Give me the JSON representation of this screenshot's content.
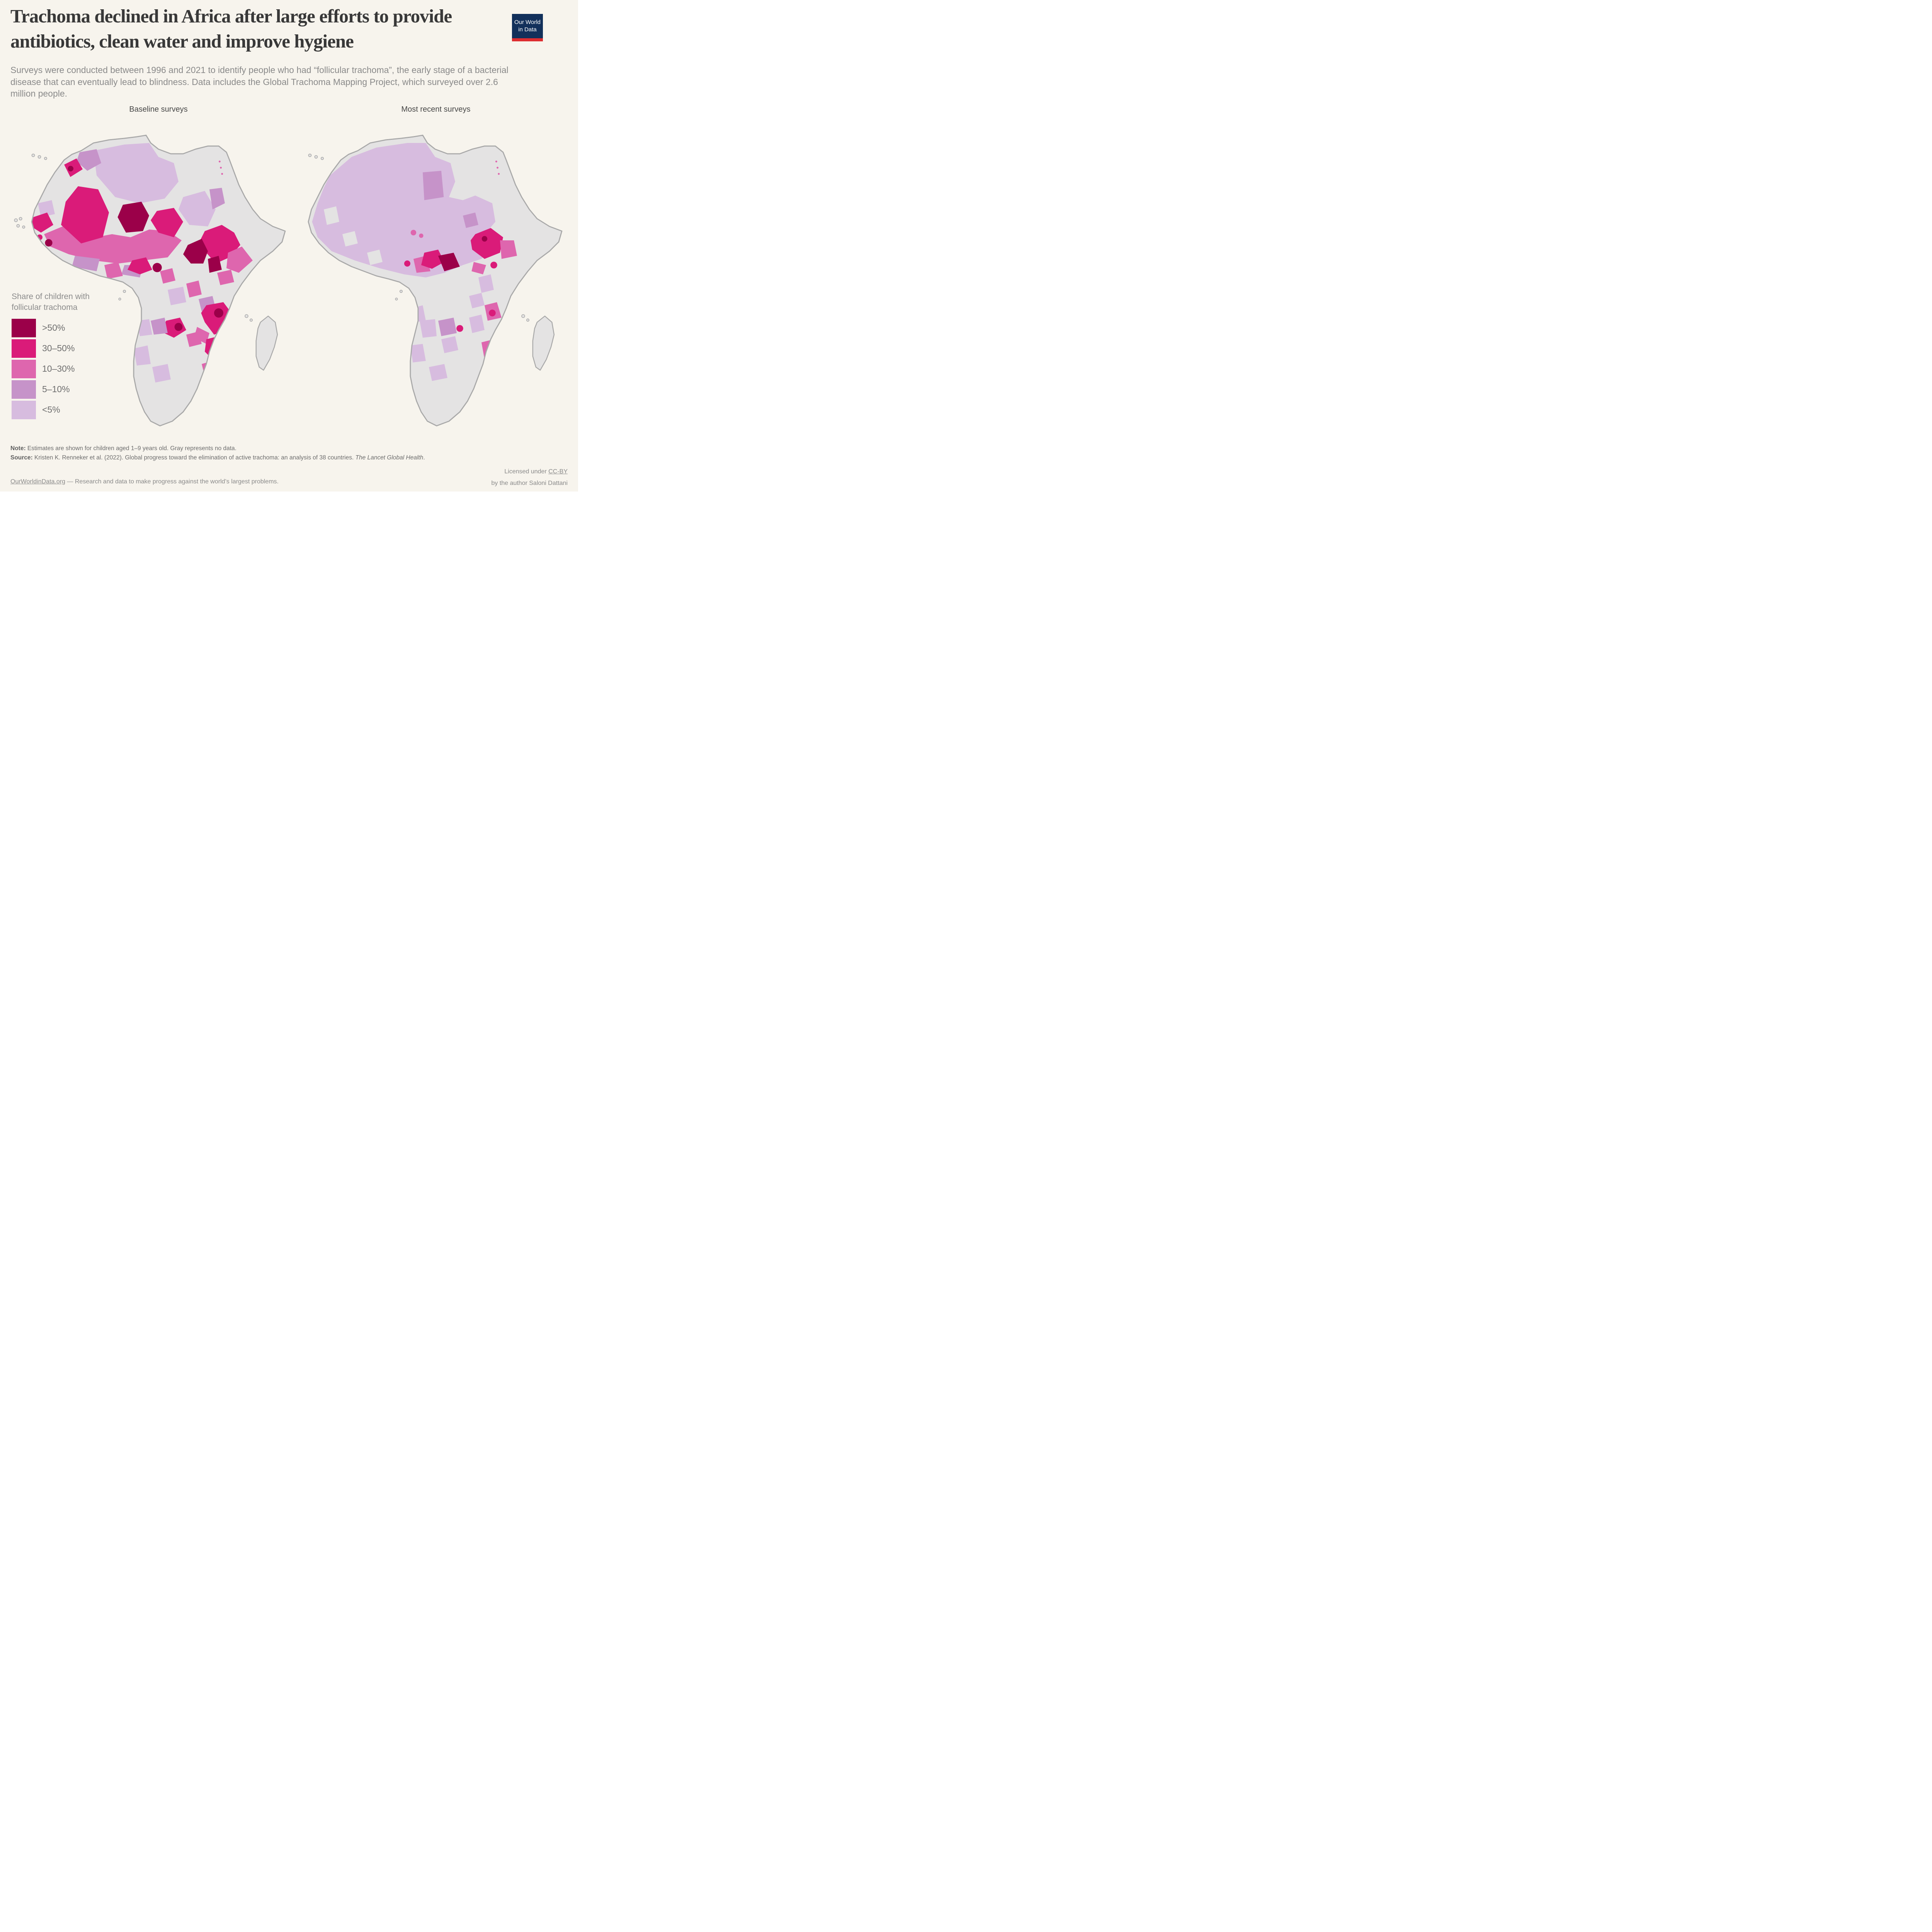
{
  "header": {
    "title": "Trachoma declined in Africa after large efforts to provide antibiotics, clean water and improve hygiene",
    "subtitle": "Surveys were conducted between 1996 and 2021 to identify people who had “follicular trachoma”, the early stage of a bacterial disease that can eventually lead to blindness. Data includes the Global Trachoma Mapping Project, which surveyed over 2.6 million people."
  },
  "logo": {
    "line1": "Our World",
    "line2": "in Data",
    "bg_color": "#12305b",
    "bar_color": "#dd2d30"
  },
  "panels": [
    {
      "label": "Baseline surveys"
    },
    {
      "label": "Most recent surveys"
    }
  ],
  "legend": {
    "title": "Share of children with follicular trachoma"
  },
  "notes": {
    "note_label": "Note:",
    "note_text": " Estimates are shown for children aged 1–9 years old. Gray represents no data.",
    "source_label": "Source:",
    "source_text": " Kristen K. Renneker et al. (2022). Global progress toward the elimination of active trachoma: an analysis of 38 countries. ",
    "source_journal": "The Lancet Global Health",
    "source_end": "."
  },
  "footer": {
    "link": "OurWorldinData.org",
    "tagline": " — Research and data to make progress against the world’s largest problems.",
    "license_pre": "Licensed under ",
    "license_link": "CC-BY",
    "byline": "by the author Saloni Dattani"
  },
  "chart_data": {
    "type": "choropleth",
    "title": "Share of children with follicular trachoma",
    "panels": [
      "Baseline surveys",
      "Most recent surveys"
    ],
    "survey_period": "1996 and 2021",
    "people_surveyed": "over 2.6 million",
    "bins": [
      {
        "key": "gt50",
        "label": ">50%",
        "color": "#9b0049"
      },
      {
        "key": "b30_50",
        "label": "30–50%",
        "color": "#da1b79"
      },
      {
        "key": "b10_30",
        "label": "10–30%",
        "color": "#de66ae"
      },
      {
        "key": "b5_10",
        "label": "5–10%",
        "color": "#c693c9"
      },
      {
        "key": "lt5",
        "label": "<5%",
        "color": "#d7bcdf"
      }
    ],
    "no_data_color": "#e4e3e3",
    "border_color": "#a9a9a9",
    "background_color": "#f7f4ed",
    "geo": {
      "mainland": "22,7 26,4.5 31,3.5 36,3 40,2.5 43,2 44.5,4.5 47,6.5 51,8 55,8 59,6.5 63,5.5 66.5,5.5 69,7.5 70,10 71.5,14 73,18 75,22 77.5,26 80,29 84,31.5 88,33 87,36.5 84,39.5 80,42.5 77,46 74,50 71.5,54 70,58 68.5,61.5 66.5,65 65,68 63.5,72 62.5,76 61,80 59.5,84 57.5,88 55,91.5 51.5,94.5 47.5,96 44.5,94.5 42.5,91.5 41,88 39.8,84 39,80 39,75 39.5,70 40.5,66 41.5,62 41.5,58 40.5,54.5 38.5,51.5 35.5,49.5 32,48.5 28,47.5 24,46 20,44.5 16,42.5 12.5,40 9.5,37 7,33.5 6,30 7,26 9,22 11,18 13.5,14 16.5,10 19,8.2",
      "madagascar": "80,62.5 82.5,60.5 84.8,62.5 85.5,66.5 84.5,70.5 83,74.5 81,78 79.6,77 78.6,73.5 78.6,68.5 79.2,64.5",
      "islands": [
        {
          "c": [
            6.5,
            8.5,
            0.45
          ]
        },
        {
          "c": [
            8.5,
            9,
            0.45
          ]
        },
        {
          "c": [
            10.5,
            9.5,
            0.4
          ]
        },
        {
          "c": [
            75.5,
            60.5,
            0.5
          ]
        },
        {
          "c": [
            77,
            61.8,
            0.4
          ]
        },
        {
          "c": [
            36,
            52.5,
            0.4
          ]
        },
        {
          "c": [
            34.5,
            55,
            0.35
          ]
        },
        {
          "c": [
            0.9,
            29.5,
            0.5
          ],
          "left_only": true
        },
        {
          "c": [
            2.4,
            29,
            0.45
          ],
          "left_only": true
        },
        {
          "c": [
            1.6,
            31.3,
            0.45
          ],
          "left_only": true
        },
        {
          "c": [
            3.4,
            31.7,
            0.4
          ],
          "left_only": true
        }
      ]
    },
    "maps": [
      {
        "name": "Baseline surveys",
        "summary": "High prevalence (10–50% and >50%) across the Sahel belt (Mali, Niger, Chad, Senegal, Guinea), Ethiopia and South Sudan, and southeastern Africa (Tanzania, Zambia, Mozambique); <5% and 5–10% across North Africa; gray (no data) in most of southern Africa, Egypt and the Congo basin.",
        "patches": [
          {
            "bin": "lt5",
            "poly": "26,7 36,5 44,4.5 47,9 52,11 53.5,17 49,22.5 41,24 33,22 27,15"
          },
          {
            "bin": "lt5",
            "poly": "55,22 62,20 65.5,26 63,31.5 57,31 53.5,26"
          },
          {
            "bin": "b5_10",
            "poly": "21.5,7.5 27,6.5 28.5,11 24,13.5 20.5,10.5"
          },
          {
            "bin": "b5_10",
            "poly": "63.5,19.5 67.5,19 68.5,24 64.5,26"
          },
          {
            "bin": "lt5",
            "poly": "8,24 12.5,23 13.5,27.5 9,28.5"
          },
          {
            "bin": "b10_30",
            "poly": "10,34 16,31.5 24,35.5 32,34 38,35 44,32.5 50,33 54.5,36 50,41.5 42,42.5 34,43.5 26,42.5 18,40.5 12,38"
          },
          {
            "bin": "b5_10",
            "poly": "20,41 28,42 27,46 19,44.5"
          },
          {
            "bin": "b5_10",
            "poly": "36,44 42,44 41,48 35,47"
          },
          {
            "bin": "b30_50",
            "poly": "21,18.5 27.5,19.5 31,27 29,35 22,37 15.5,31 17,23.5"
          },
          {
            "bin": "b30_50",
            "poly": "6.5,28.5 11,27 13,31 9,33.5 5.8,31.5"
          },
          {
            "bin": "b30_50",
            "poly": "46.5,26.5 52,25.5 55,30 52,35 47,33.5 44.5,29.5"
          },
          {
            "bin": "b30_50",
            "poly": "16.5,11.5 20.5,9.5 22.5,13 18.5,15.5"
          },
          {
            "bin": "gt50",
            "poly": "35.5,24.5 41.5,23.5 44,28 42,33 36.5,33.5 33.8,28.5"
          },
          {
            "bin": "gt50",
            "c": [
              18.6,
              12.8,
              0.9
            ]
          },
          {
            "bin": "gt50",
            "c": [
              11.5,
              36.8,
              1.2
            ]
          },
          {
            "bin": "b30_50",
            "c": [
              8.6,
              35,
              0.9
            ]
          },
          {
            "bin": "b30_50",
            "poly": "62,33 67.5,31 71.5,33.5 73.5,37.5 70,41.5 65.5,43.5 62.5,40 60.5,36"
          },
          {
            "bin": "gt50",
            "poly": "56.5,37.5 61,35.5 63,39.5 61.5,43.5 57.5,43.5 55,40.5"
          },
          {
            "bin": "gt50",
            "poly": "63,42 66.5,41 67.5,45.5 63.5,46.5"
          },
          {
            "bin": "b10_30",
            "poly": "69.5,40 74,38 77.5,42.5 73,46.5 69,45"
          },
          {
            "bin": "b10_30",
            "poly": "66,46.5 70.5,45.5 71.5,49.5 67,50.5"
          },
          {
            "bin": "b10_30",
            "poly": "29.5,44 34,43 35.5,47.5 30.5,48.5"
          },
          {
            "bin": "b30_50",
            "poly": "38.5,42.5 43,41.5 45,45.5 41,47 37,45.5"
          },
          {
            "bin": "gt50",
            "c": [
              46.6,
              44.8,
              1.5
            ]
          },
          {
            "bin": "b10_30",
            "poly": "47.5,46 51.5,45 52.5,49 48.5,50"
          },
          {
            "bin": "b10_30",
            "poly": "56,50 60,49 61,53.5 57,54.5"
          },
          {
            "bin": "lt5",
            "poly": "50,52 55,51 56,56 51,57"
          },
          {
            "bin": "b5_10",
            "poly": "60,55 64.5,54 65.5,58 61,59"
          },
          {
            "bin": "b30_50",
            "poly": "62.5,57 68,56 71,60 70,65 65,66.5 62,62.5 60.8,59.5"
          },
          {
            "bin": "gt50",
            "c": [
              66.5,
              59.5,
              1.5
            ]
          },
          {
            "bin": "b10_30",
            "poly": "59.5,64 63.5,66 62.5,69.5 58.5,67.5"
          },
          {
            "bin": "b30_50",
            "poly": "62.5,68 66.5,67 68,72 65,75 62,72"
          },
          {
            "bin": "b10_30",
            "poly": "61,76 64.5,75 65.5,79 62,80"
          },
          {
            "bin": "b30_50",
            "poly": "49.5,62 54,61 56,65 52,67.5 47.8,65.5"
          },
          {
            "bin": "gt50",
            "c": [
              53.5,
              64,
              1.3
            ]
          },
          {
            "bin": "b10_30",
            "poly": "56,66.5 60,65.5 61,69.5 57,70.5"
          },
          {
            "bin": "b5_10",
            "poly": "44.5,62 49,61 50,66 45.5,66.5"
          },
          {
            "bin": "lt5",
            "poly": "40,62 44,61.5 45,66.5 41,67"
          },
          {
            "bin": "lt5",
            "poly": "39,71 43.5,70 44.5,76 40,76.5"
          },
          {
            "bin": "lt5",
            "poly": "45,77 50,76 51,81 46,82"
          },
          {
            "bin": "b10_30",
            "c": [
              66.8,
              10.5,
              0.3
            ]
          },
          {
            "bin": "b10_30",
            "c": [
              67.2,
              12.5,
              0.3
            ]
          },
          {
            "bin": "b10_30",
            "c": [
              67.6,
              14.5,
              0.3
            ]
          }
        ]
      },
      {
        "name": "Most recent surveys",
        "summary": "Most surveyed districts fell to <5% (pale lavender across West Africa, the Sahara, Sahel and Sudan); remaining hotspots of 30–50% and >50% are limited to southern Chad / CAR and Ethiopia, with scattered 10–30% districts in Tanzania and Mozambique; gray (no data) in Morocco, Egypt, the Congo basin, the Horn and southern Africa.",
        "patches": [
          {
            "bin": "lt5",
            "poly": "13,15 20,9 28,6 38,4.5 44,4.5 47,9 52,11 53.5,17 51.5,22 56,23 60,21.5 65.5,24 66.5,30 63.5,33.5 65.5,38 62,42 56,44 50,46.5 44,48 37,47 29,45 21,42.5 13.5,39.5 9,35 7.2,30 9,24 11,19"
          },
          {
            "bin": "nodata",
            "poly": "11,26 15,25 16,30 12,31"
          },
          {
            "bin": "nodata",
            "poly": "17,34 21,33 22,37 18,38"
          },
          {
            "bin": "nodata",
            "poly": "25,40 29,39 30,43 26,44"
          },
          {
            "bin": "b5_10",
            "poly": "43,14 49,13.5 49.8,22 43.5,23"
          },
          {
            "bin": "b5_10",
            "poly": "56,28 60,27 61,31 57,32"
          },
          {
            "bin": "b10_30",
            "c": [
              40,
              33.5,
              0.9
            ]
          },
          {
            "bin": "b10_30",
            "c": [
              42.5,
              34.5,
              0.7
            ]
          },
          {
            "bin": "b10_30",
            "poly": "40,42 44,41 45.5,46 41,46.5"
          },
          {
            "bin": "b30_50",
            "poly": "43.5,40 48,39 50,43 46,45.2 42.5,44"
          },
          {
            "bin": "gt50",
            "poly": "48,41 53,40 55,44.5 50,46"
          },
          {
            "bin": "b30_50",
            "c": [
              38,
              43.5,
              1.0
            ]
          },
          {
            "bin": "b30_50",
            "poly": "60,34 65,32 69,35 68,40 63,42 59,39 58.5,36"
          },
          {
            "bin": "b10_30",
            "poly": "68,36 72.5,36 73.5,41 68.5,42"
          },
          {
            "bin": "gt50",
            "c": [
              63,
              35.5,
              0.9
            ]
          },
          {
            "bin": "b30_50",
            "c": [
              66,
              44,
              1.1
            ]
          },
          {
            "bin": "b10_30",
            "poly": "59.5,43 63.5,44 62.5,47 58.8,46"
          },
          {
            "bin": "lt5",
            "poly": "61,48 65,47 66,52 62,53"
          },
          {
            "bin": "lt5",
            "poly": "58,54 62,53 63,57 59,58"
          },
          {
            "bin": "b10_30",
            "poly": "63,57 67,56 68.5,61 64,62"
          },
          {
            "bin": "b30_50",
            "c": [
              65.5,
              59.5,
              1.1
            ]
          },
          {
            "bin": "lt5",
            "poly": "58,61 62,60 63,65 59,66"
          },
          {
            "bin": "b10_30",
            "poly": "62,69 66,68 67,73 63,74.5"
          },
          {
            "bin": "b30_50",
            "c": [
              64.5,
              76,
              0.9
            ]
          },
          {
            "bin": "b5_10",
            "poly": "48,62 53,61 54,66 49,67"
          },
          {
            "bin": "b30_50",
            "c": [
              55,
              64.5,
              1.1
            ]
          },
          {
            "bin": "lt5",
            "poly": "42,62 47,61.5 47.5,67 43,67.5"
          },
          {
            "bin": "lt5",
            "poly": "39.5,58 43,57 44,62 40,62.5"
          },
          {
            "bin": "lt5",
            "poly": "39,70 43,69.5 44,75 39.8,75.5"
          },
          {
            "bin": "lt5",
            "poly": "45,77 50,76 51,80.5 46,81.5"
          },
          {
            "bin": "lt5",
            "poly": "49,68 53.5,67 54.5,71.5 50,72.5"
          },
          {
            "bin": "b10_30",
            "c": [
              66.8,
              10.5,
              0.3
            ]
          },
          {
            "bin": "b10_30",
            "c": [
              67.2,
              12.5,
              0.3
            ]
          },
          {
            "bin": "b10_30",
            "c": [
              67.6,
              14.5,
              0.3
            ]
          }
        ]
      }
    ]
  }
}
